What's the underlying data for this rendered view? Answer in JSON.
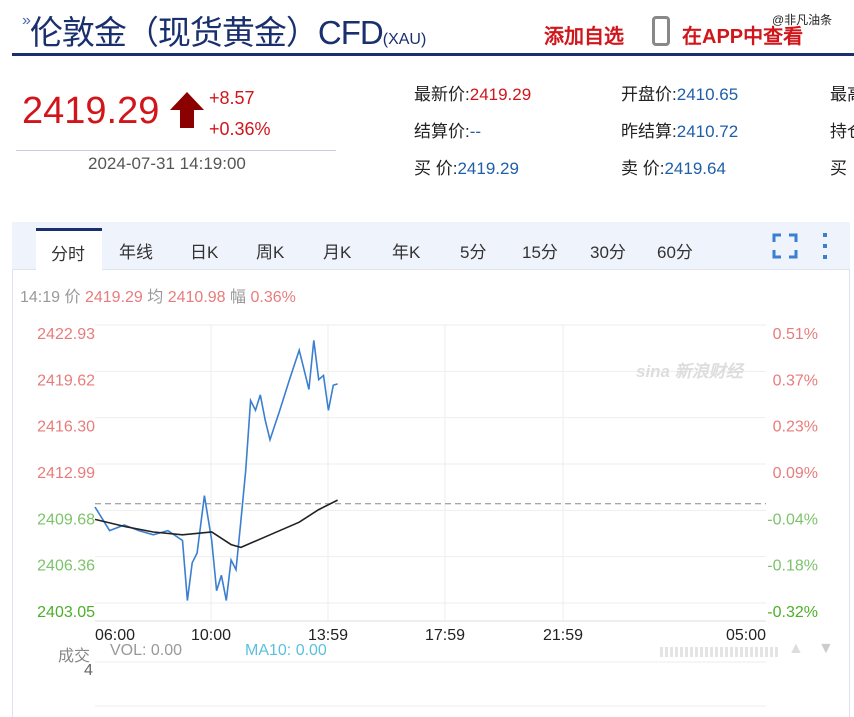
{
  "header": {
    "title": "伦敦金（现货黄金）CFD",
    "code": "(XAU)",
    "add_watchlist": "添加自选",
    "view_in_app": "在APP中查看",
    "watermark": "@非凡油条"
  },
  "quote": {
    "price": "2419.29",
    "change": "+8.57",
    "change_pct": "+0.36%",
    "direction": "up",
    "timestamp": "2024-07-31 14:19:00",
    "fields": [
      {
        "label": "最新价:",
        "value": "2419.29",
        "color": "red"
      },
      {
        "label": "开盘价:",
        "value": "2410.65",
        "color": "blue"
      },
      {
        "label": "最高",
        "value": ""
      },
      {
        "label": "结算价:",
        "value": "--",
        "color": "blue"
      },
      {
        "label": "昨结算:",
        "value": "2410.72",
        "color": "blue"
      },
      {
        "label": "持仓",
        "value": ""
      },
      {
        "label": "买  价:",
        "value": "2419.29",
        "color": "blue"
      },
      {
        "label": "卖  价:",
        "value": "2419.64",
        "color": "blue"
      },
      {
        "label": "买",
        "value": ""
      }
    ]
  },
  "tabs": [
    "分时",
    "年线",
    "日K",
    "周K",
    "月K",
    "年K",
    "5分",
    "15分",
    "30分",
    "60分"
  ],
  "active_tab": "分时",
  "info": {
    "time": "14:19",
    "price_label": "价",
    "price": "2419.29",
    "avg_label": "均",
    "avg": "2410.98",
    "amp_label": "幅",
    "amp": "0.36%"
  },
  "volume": {
    "label": "成交",
    "vol": "VOL: 0.00",
    "ma10": "MA10: 0.00",
    "axis_value": "4"
  },
  "colors": {
    "brand": "#1a2f6e",
    "up": "#d0161b",
    "price_line": "#3a7fd0",
    "avg_line": "#222222",
    "down": "#4caf28"
  },
  "chart_data": {
    "type": "line",
    "y_ticks": [
      "2422.93",
      "2419.62",
      "2416.30",
      "2412.99",
      "2409.68",
      "2406.36",
      "2403.05"
    ],
    "pct_ticks": [
      "0.51%",
      "0.37%",
      "0.23%",
      "0.09%",
      "-0.04%",
      "-0.18%",
      "-0.32%"
    ],
    "x_ticks": [
      "06:00",
      "10:00",
      "13:59",
      "17:59",
      "21:59",
      "05:00"
    ],
    "ylim": [
      2403.05,
      2422.93
    ],
    "prev_settle": 2410.72,
    "series": [
      {
        "key": "price",
        "points": [
          [
            "06:00",
            2410.49
          ],
          [
            "06:30",
            2408.8
          ],
          [
            "07:00",
            2409.2
          ],
          [
            "07:30",
            2408.8
          ],
          [
            "08:00",
            2408.5
          ],
          [
            "08:30",
            2408.8
          ],
          [
            "09:00",
            2408.1
          ],
          [
            "09:10",
            2403.8
          ],
          [
            "09:20",
            2406.5
          ],
          [
            "09:30",
            2407.2
          ],
          [
            "09:45",
            2411.3
          ],
          [
            "10:00",
            2408.1
          ],
          [
            "10:10",
            2404.5
          ],
          [
            "10:20",
            2405.6
          ],
          [
            "10:30",
            2403.8
          ],
          [
            "10:40",
            2406.7
          ],
          [
            "10:50",
            2406.0
          ],
          [
            "11:00",
            2409.5
          ],
          [
            "11:10",
            2413.1
          ],
          [
            "11:20",
            2418.1
          ],
          [
            "11:30",
            2417.4
          ],
          [
            "11:40",
            2418.5
          ],
          [
            "11:50",
            2416.7
          ],
          [
            "12:00",
            2415.3
          ],
          [
            "12:20",
            2417.4
          ],
          [
            "12:40",
            2419.6
          ],
          [
            "13:00",
            2421.7
          ],
          [
            "13:10",
            2420.3
          ],
          [
            "13:20",
            2418.9
          ],
          [
            "13:30",
            2422.4
          ],
          [
            "13:40",
            2419.6
          ],
          [
            "13:50",
            2419.9
          ],
          [
            "14:00",
            2417.4
          ],
          [
            "14:10",
            2419.2
          ],
          [
            "14:19",
            2419.29
          ]
        ]
      },
      {
        "key": "avg",
        "points": [
          [
            "06:00",
            2409.6
          ],
          [
            "07:00",
            2409.1
          ],
          [
            "08:00",
            2408.7
          ],
          [
            "09:00",
            2408.5
          ],
          [
            "10:00",
            2408.7
          ],
          [
            "10:40",
            2407.8
          ],
          [
            "11:00",
            2407.6
          ],
          [
            "12:00",
            2408.5
          ],
          [
            "13:00",
            2409.4
          ],
          [
            "13:40",
            2410.3
          ],
          [
            "14:19",
            2410.98
          ]
        ]
      }
    ]
  }
}
